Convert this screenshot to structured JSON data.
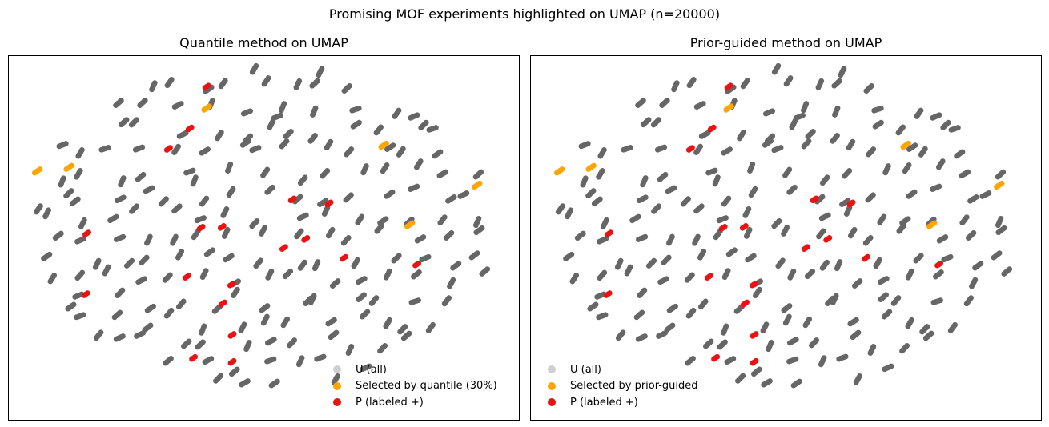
{
  "figure_title": "Promising MOF experiments highlighted on UMAP (n=20000)",
  "colors": {
    "unlabeled": "#666666",
    "legend_unlabeled": "#cfcfcf",
    "selected": "#ffa500",
    "positive": "#ee1111",
    "axes": "#000000"
  },
  "chart_data": [
    {
      "type": "scatter",
      "title": "Quantile method on UMAP",
      "xlim": [
        0,
        100
      ],
      "ylim": [
        0,
        100
      ],
      "xlabel": "",
      "ylabel": "",
      "grid": false,
      "legend_position": "lower-right",
      "legend": [
        "U (all)",
        "Selected by quantile (30%)",
        "P (labeled +)"
      ],
      "series": [
        {
          "name": "U (all)",
          "role": "unlabeled"
        },
        {
          "name": "Selected by quantile (30%)",
          "role": "selected",
          "points": [
            [
              38.8,
              85.7
            ],
            [
              5.6,
              68.4
            ],
            [
              11.8,
              69.4
            ],
            [
              73.5,
              75.5
            ],
            [
              91.8,
              64.5
            ],
            [
              78.6,
              53.6
            ]
          ]
        },
        {
          "name": "P (labeled +)",
          "role": "positive",
          "points": [
            [
              38.8,
              91.6
            ],
            [
              35.5,
              80.1
            ],
            [
              31.3,
              74.5
            ],
            [
              15.3,
              51.2
            ],
            [
              55.6,
              60.6
            ],
            [
              62.8,
              59.5
            ],
            [
              37.7,
              52.8
            ],
            [
              41.8,
              53.0
            ],
            [
              58.2,
              49.7
            ],
            [
              53.9,
              47.2
            ],
            [
              65.7,
              44.5
            ],
            [
              80.0,
              42.7
            ],
            [
              34.9,
              39.3
            ],
            [
              43.7,
              37.2
            ],
            [
              15.1,
              34.5
            ],
            [
              42.0,
              32.0
            ],
            [
              43.8,
              23.3
            ],
            [
              36.2,
              17.0
            ],
            [
              43.8,
              15.9
            ]
          ]
        }
      ]
    },
    {
      "type": "scatter",
      "title": "Prior-guided method on UMAP",
      "xlim": [
        0,
        100
      ],
      "ylim": [
        0,
        100
      ],
      "xlabel": "",
      "ylabel": "",
      "grid": false,
      "legend_position": "lower-left",
      "legend": [
        "U (all)",
        "Selected by prior-guided",
        "P (labeled +)"
      ],
      "series": [
        {
          "name": "U (all)",
          "role": "unlabeled"
        },
        {
          "name": "Selected by prior-guided",
          "role": "selected",
          "points": [
            [
              38.8,
              85.7
            ],
            [
              5.6,
              68.4
            ],
            [
              11.8,
              69.4
            ],
            [
              73.5,
              75.5
            ],
            [
              91.8,
              64.5
            ],
            [
              78.6,
              53.6
            ]
          ]
        },
        {
          "name": "P (labeled +)",
          "role": "positive",
          "points": [
            [
              38.8,
              91.6
            ],
            [
              35.5,
              80.1
            ],
            [
              31.3,
              74.5
            ],
            [
              15.3,
              51.2
            ],
            [
              55.6,
              60.6
            ],
            [
              62.8,
              59.5
            ],
            [
              37.7,
              52.8
            ],
            [
              41.8,
              53.0
            ],
            [
              58.2,
              49.7
            ],
            [
              53.9,
              47.2
            ],
            [
              65.7,
              44.5
            ],
            [
              80.0,
              42.7
            ],
            [
              34.9,
              39.3
            ],
            [
              43.7,
              37.2
            ],
            [
              15.1,
              34.5
            ],
            [
              42.0,
              32.0
            ],
            [
              43.8,
              23.3
            ],
            [
              36.2,
              17.0
            ],
            [
              43.8,
              15.9
            ]
          ]
        }
      ]
    }
  ]
}
